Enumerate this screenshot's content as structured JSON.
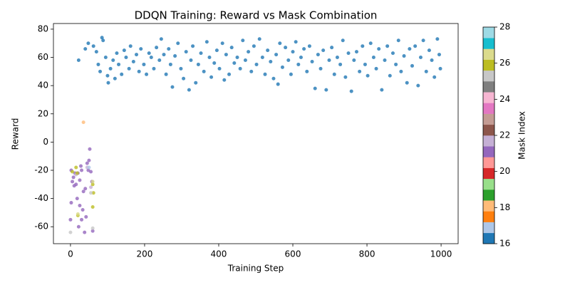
{
  "chart_data": {
    "type": "scatter",
    "title": "DDQN Training: Reward vs Mask Combination",
    "xlabel": "Training Step",
    "ylabel": "Reward",
    "xlim": [
      -46,
      1046
    ],
    "ylim": [
      -72,
      84
    ],
    "xticks": [
      0,
      200,
      400,
      600,
      800,
      1000
    ],
    "yticks": [
      -60,
      -40,
      -20,
      0,
      20,
      40,
      60,
      80
    ],
    "colorbar": {
      "label": "Mask Index",
      "lim": [
        16,
        28
      ],
      "ticks": [
        16,
        18,
        20,
        22,
        24,
        26,
        28
      ],
      "colors": [
        "#1f77b4",
        "#aec7e8",
        "#ff7f0e",
        "#ffbb78",
        "#2ca02c",
        "#98df8a",
        "#d62728",
        "#ff9896",
        "#9467bd",
        "#c5b0d5",
        "#8c564b",
        "#c49c94",
        "#e377c2",
        "#f7b6d2",
        "#7f7f7f",
        "#c7c7c7",
        "#bcbd22",
        "#dbdb8d",
        "#17becf",
        "#9edae5"
      ]
    },
    "points": [
      [
        2,
        -20,
        21
      ],
      [
        5,
        -28,
        21
      ],
      [
        8,
        -25,
        21
      ],
      [
        10,
        -31,
        21
      ],
      [
        12,
        -22,
        21
      ],
      [
        15,
        -30,
        21
      ],
      [
        18,
        -40,
        21
      ],
      [
        20,
        -22,
        21
      ],
      [
        22,
        -60,
        21
      ],
      [
        25,
        -27,
        21
      ],
      [
        28,
        -17,
        21
      ],
      [
        30,
        -20,
        21
      ],
      [
        33,
        -48,
        21
      ],
      [
        35,
        -35,
        21
      ],
      [
        38,
        -64,
        21
      ],
      [
        40,
        -33,
        21
      ],
      [
        42,
        -53,
        21
      ],
      [
        45,
        -15,
        21
      ],
      [
        48,
        -20,
        21
      ],
      [
        50,
        -13,
        21
      ],
      [
        52,
        -5,
        21
      ],
      [
        55,
        -21,
        21
      ],
      [
        58,
        -28,
        21
      ],
      [
        60,
        -63,
        21
      ],
      [
        2,
        -43,
        21
      ],
      [
        0,
        -55,
        21
      ],
      [
        25,
        -45,
        21
      ],
      [
        30,
        -55,
        21
      ],
      [
        15,
        -23,
        21.5
      ],
      [
        45,
        -18,
        21.5
      ],
      [
        55,
        -32,
        21.5
      ],
      [
        15,
        -18,
        26
      ],
      [
        18,
        -22,
        26
      ],
      [
        20,
        -52,
        26
      ],
      [
        60,
        -30,
        26
      ],
      [
        62,
        -36,
        26
      ],
      [
        60,
        -46,
        26
      ],
      [
        5,
        -21,
        26
      ],
      [
        0,
        -64,
        25.3
      ],
      [
        60,
        -61,
        25.3
      ],
      [
        55,
        -36,
        25.3
      ],
      [
        20,
        -51,
        26.5
      ],
      [
        60,
        -28,
        26.5
      ],
      [
        35,
        14,
        18
      ],
      [
        50,
        -18,
        16.9
      ],
      [
        22,
        58,
        16
      ],
      [
        40,
        66,
        16
      ],
      [
        48,
        70,
        16
      ],
      [
        62,
        68,
        16
      ],
      [
        70,
        64,
        16
      ],
      [
        75,
        55,
        16
      ],
      [
        80,
        50,
        16
      ],
      [
        85,
        74,
        16
      ],
      [
        88,
        72,
        16
      ],
      [
        95,
        60,
        16
      ],
      [
        100,
        47,
        16
      ],
      [
        102,
        42,
        16
      ],
      [
        108,
        52,
        16
      ],
      [
        115,
        58,
        16
      ],
      [
        120,
        45,
        16
      ],
      [
        125,
        63,
        16
      ],
      [
        130,
        55,
        16
      ],
      [
        138,
        48,
        16
      ],
      [
        145,
        65,
        16
      ],
      [
        150,
        60,
        16
      ],
      [
        158,
        52,
        16
      ],
      [
        162,
        68,
        16
      ],
      [
        170,
        57,
        16
      ],
      [
        178,
        62,
        16
      ],
      [
        185,
        50,
        16
      ],
      [
        190,
        66,
        16
      ],
      [
        198,
        55,
        16
      ],
      [
        205,
        48,
        16
      ],
      [
        212,
        63,
        16
      ],
      [
        218,
        60,
        16
      ],
      [
        225,
        52,
        16
      ],
      [
        232,
        67,
        16
      ],
      [
        240,
        58,
        16
      ],
      [
        245,
        73,
        16
      ],
      [
        252,
        62,
        16
      ],
      [
        258,
        48,
        16
      ],
      [
        265,
        66,
        16
      ],
      [
        270,
        55,
        16
      ],
      [
        275,
        39,
        16
      ],
      [
        282,
        61,
        16
      ],
      [
        290,
        70,
        16
      ],
      [
        298,
        52,
        16
      ],
      [
        305,
        45,
        16
      ],
      [
        312,
        64,
        16
      ],
      [
        320,
        37,
        16
      ],
      [
        325,
        58,
        16
      ],
      [
        330,
        68,
        16
      ],
      [
        338,
        42,
        16
      ],
      [
        345,
        55,
        16
      ],
      [
        352,
        63,
        16
      ],
      [
        360,
        50,
        16
      ],
      [
        368,
        71,
        16
      ],
      [
        375,
        60,
        16
      ],
      [
        380,
        46,
        16
      ],
      [
        388,
        56,
        16
      ],
      [
        395,
        65,
        16
      ],
      [
        402,
        52,
        16
      ],
      [
        410,
        70,
        16
      ],
      [
        415,
        44,
        16
      ],
      [
        420,
        62,
        16
      ],
      [
        428,
        48,
        16
      ],
      [
        435,
        67,
        16
      ],
      [
        442,
        56,
        16
      ],
      [
        450,
        60,
        16
      ],
      [
        458,
        52,
        16
      ],
      [
        465,
        72,
        16
      ],
      [
        472,
        58,
        16
      ],
      [
        480,
        64,
        16
      ],
      [
        488,
        50,
        16
      ],
      [
        495,
        68,
        16
      ],
      [
        502,
        55,
        16
      ],
      [
        510,
        73,
        16
      ],
      [
        518,
        60,
        16
      ],
      [
        525,
        48,
        16
      ],
      [
        532,
        65,
        16
      ],
      [
        540,
        57,
        16
      ],
      [
        548,
        45,
        16
      ],
      [
        555,
        62,
        16
      ],
      [
        560,
        41,
        16
      ],
      [
        565,
        70,
        16
      ],
      [
        572,
        53,
        16
      ],
      [
        580,
        67,
        16
      ],
      [
        588,
        58,
        16
      ],
      [
        595,
        48,
        16
      ],
      [
        600,
        64,
        16
      ],
      [
        608,
        71,
        16
      ],
      [
        615,
        55,
        16
      ],
      [
        622,
        60,
        16
      ],
      [
        630,
        66,
        16
      ],
      [
        638,
        50,
        16
      ],
      [
        645,
        68,
        16
      ],
      [
        652,
        57,
        16
      ],
      [
        660,
        38,
        16
      ],
      [
        668,
        62,
        16
      ],
      [
        675,
        52,
        16
      ],
      [
        682,
        65,
        16
      ],
      [
        690,
        37,
        16
      ],
      [
        698,
        58,
        16
      ],
      [
        705,
        67,
        16
      ],
      [
        712,
        48,
        16
      ],
      [
        720,
        60,
        16
      ],
      [
        728,
        55,
        16
      ],
      [
        735,
        72,
        16
      ],
      [
        742,
        46,
        16
      ],
      [
        750,
        63,
        16
      ],
      [
        758,
        36,
        16
      ],
      [
        765,
        58,
        16
      ],
      [
        772,
        64,
        16
      ],
      [
        780,
        50,
        16
      ],
      [
        788,
        68,
        16
      ],
      [
        795,
        55,
        16
      ],
      [
        802,
        47,
        16
      ],
      [
        810,
        70,
        16
      ],
      [
        818,
        60,
        16
      ],
      [
        825,
        52,
        16
      ],
      [
        832,
        66,
        16
      ],
      [
        840,
        37,
        16
      ],
      [
        848,
        58,
        16
      ],
      [
        855,
        68,
        16
      ],
      [
        862,
        47,
        16
      ],
      [
        870,
        63,
        16
      ],
      [
        878,
        55,
        16
      ],
      [
        885,
        72,
        16
      ],
      [
        892,
        50,
        16
      ],
      [
        900,
        61,
        16
      ],
      [
        908,
        42,
        16
      ],
      [
        915,
        66,
        16
      ],
      [
        922,
        54,
        16
      ],
      [
        930,
        68,
        16
      ],
      [
        938,
        40,
        16
      ],
      [
        945,
        60,
        16
      ],
      [
        952,
        72,
        16
      ],
      [
        960,
        50,
        16
      ],
      [
        968,
        65,
        16
      ],
      [
        975,
        58,
        16
      ],
      [
        982,
        46,
        16
      ],
      [
        990,
        73,
        16
      ],
      [
        995,
        62,
        16
      ],
      [
        998,
        52,
        16
      ]
    ]
  }
}
